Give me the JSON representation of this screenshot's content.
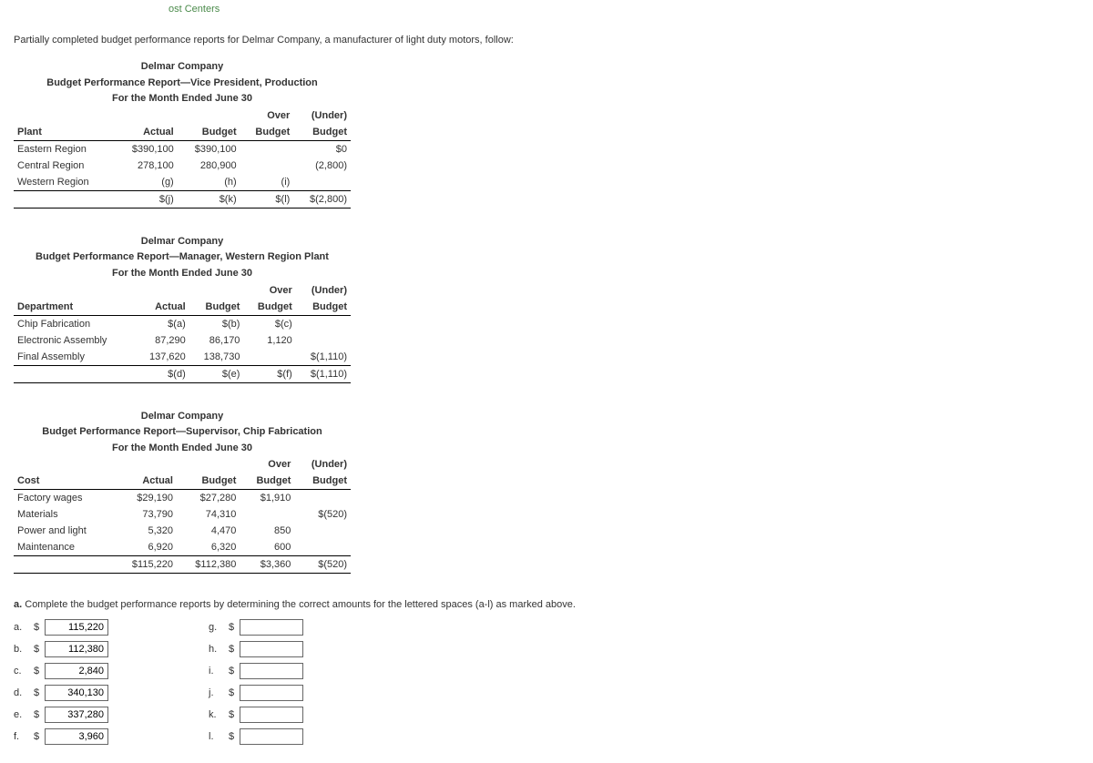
{
  "top_link": "ost Centers",
  "intro": "Partially completed budget performance reports for Delmar Company, a manufacturer of light duty motors, follow:",
  "report1": {
    "company": "Delmar Company",
    "title": "Budget Performance Report—Vice President, Production",
    "period": "For the Month Ended June 30",
    "col0": "Plant",
    "col1": "Actual",
    "col2": "Budget",
    "col3a": "Over",
    "col3b": "Budget",
    "col4a": "(Under)",
    "col4b": "Budget",
    "rows": [
      {
        "name": "Eastern Region",
        "actual": "$390,100",
        "budget": "$390,100",
        "over": "",
        "under": "$0"
      },
      {
        "name": "Central Region",
        "actual": "278,100",
        "budget": "280,900",
        "over": "",
        "under": "(2,800)"
      },
      {
        "name": "Western Region",
        "actual": "(g)",
        "budget": "(h)",
        "over": "(i)",
        "under": ""
      }
    ],
    "total": {
      "actual": "$(j)",
      "budget": "$(k)",
      "over": "$(l)",
      "under": "$(2,800)"
    }
  },
  "report2": {
    "company": "Delmar Company",
    "title": "Budget Performance Report—Manager, Western Region Plant",
    "period": "For the Month Ended June 30",
    "col0": "Department",
    "col1": "Actual",
    "col2": "Budget",
    "col3a": "Over",
    "col3b": "Budget",
    "col4a": "(Under)",
    "col4b": "Budget",
    "rows": [
      {
        "name": "Chip Fabrication",
        "actual": "$(a)",
        "budget": "$(b)",
        "over": "$(c)",
        "under": ""
      },
      {
        "name": "Electronic Assembly",
        "actual": "87,290",
        "budget": "86,170",
        "over": "1,120",
        "under": ""
      },
      {
        "name": "Final Assembly",
        "actual": "137,620",
        "budget": "138,730",
        "over": "",
        "under": "$(1,110)"
      }
    ],
    "total": {
      "actual": "$(d)",
      "budget": "$(e)",
      "over": "$(f)",
      "under": "$(1,110)"
    }
  },
  "report3": {
    "company": "Delmar Company",
    "title": "Budget Performance Report—Supervisor, Chip Fabrication",
    "period": "For the Month Ended June 30",
    "col0": "Cost",
    "col1": "Actual",
    "col2": "Budget",
    "col3a": "Over",
    "col3b": "Budget",
    "col4a": "(Under)",
    "col4b": "Budget",
    "rows": [
      {
        "name": "Factory wages",
        "actual": "$29,190",
        "budget": "$27,280",
        "over": "$1,910",
        "under": ""
      },
      {
        "name": "Materials",
        "actual": "73,790",
        "budget": "74,310",
        "over": "",
        "under": "$(520)"
      },
      {
        "name": "Power and light",
        "actual": "5,320",
        "budget": "4,470",
        "over": "850",
        "under": ""
      },
      {
        "name": "Maintenance",
        "actual": "6,920",
        "budget": "6,320",
        "over": "600",
        "under": ""
      }
    ],
    "total": {
      "actual": "$115,220",
      "budget": "$112,380",
      "over": "$3,360",
      "under": "$(520)"
    }
  },
  "question": {
    "letter": "a.",
    "text": "Complete the budget performance reports by determining the correct amounts for the lettered spaces (a-l) as marked above."
  },
  "answers": {
    "left": [
      {
        "label": "a.",
        "value": "115,220"
      },
      {
        "label": "b.",
        "value": "112,380"
      },
      {
        "label": "c.",
        "value": "2,840"
      },
      {
        "label": "d.",
        "value": "340,130"
      },
      {
        "label": "e.",
        "value": "337,280"
      },
      {
        "label": "f.",
        "value": "3,960"
      }
    ],
    "right": [
      {
        "label": "g.",
        "value": ""
      },
      {
        "label": "h.",
        "value": ""
      },
      {
        "label": "i.",
        "value": ""
      },
      {
        "label": "j.",
        "value": ""
      },
      {
        "label": "k.",
        "value": ""
      },
      {
        "label": "l.",
        "value": ""
      }
    ]
  },
  "dollar": "$"
}
